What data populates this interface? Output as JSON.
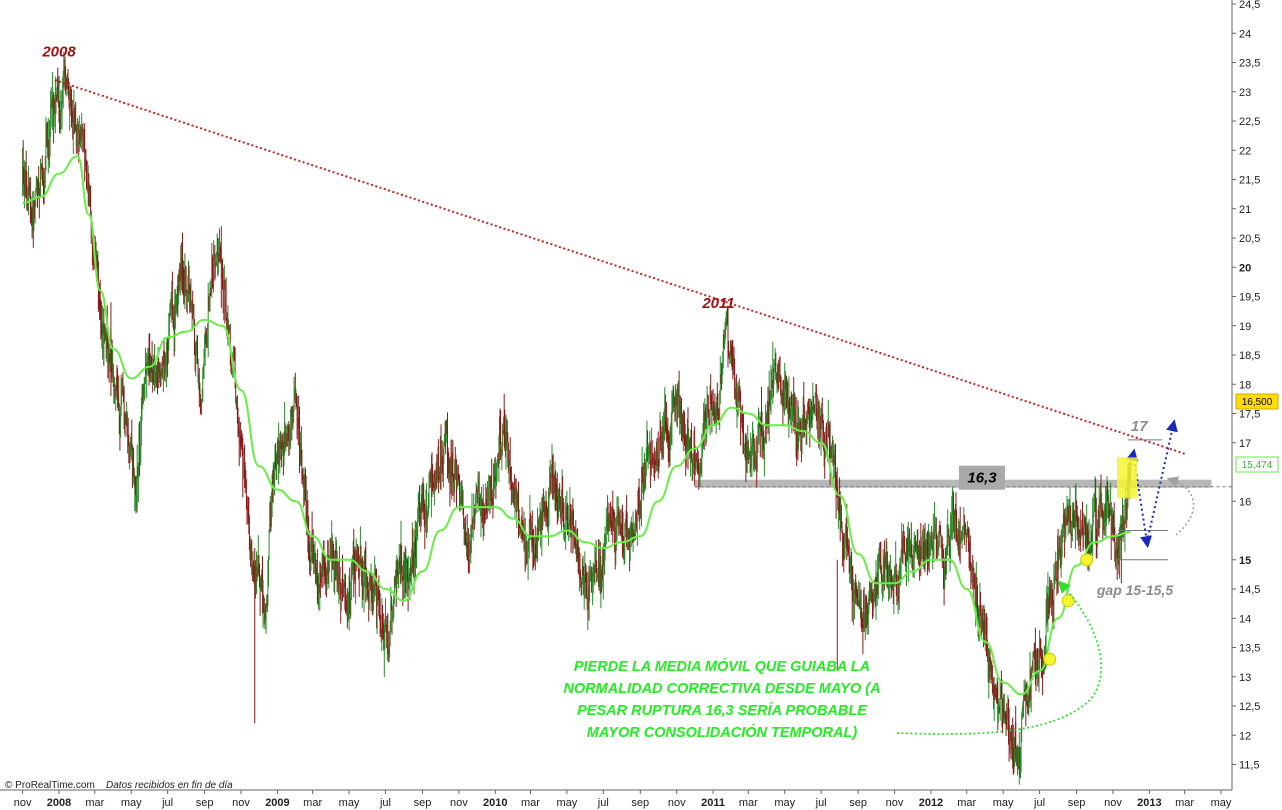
{
  "chart_data": {
    "type": "line",
    "subtype": "price-bars-with-moving-average",
    "footer": {
      "source": "© ProRealTime.com",
      "note": "Datos recibidos en fin de día"
    },
    "x_axis": {
      "labels": [
        "nov",
        "2008",
        "mar",
        "may",
        "jul",
        "sep",
        "nov",
        "2009",
        "mar",
        "may",
        "jul",
        "sep",
        "nov",
        "2010",
        "mar",
        "may",
        "jul",
        "sep",
        "nov",
        "2011",
        "mar",
        "may",
        "jul",
        "sep",
        "nov",
        "2012",
        "mar",
        "may",
        "jul",
        "sep",
        "nov",
        "2013",
        "mar",
        "may"
      ],
      "bold_labels": [
        "2008",
        "2009",
        "2010",
        "2011",
        "2012",
        "2013"
      ],
      "range": [
        "2007-11",
        "2013-05"
      ]
    },
    "y_axis": {
      "labels": [
        "24,5",
        "24",
        "23,5",
        "23",
        "22,5",
        "22",
        "21,5",
        "21",
        "20,5",
        "20",
        "19,5",
        "19",
        "18,5",
        "18",
        "17,5",
        "17",
        "16",
        "15",
        "14,5",
        "14",
        "13,5",
        "13",
        "12,5",
        "12",
        "11,5"
      ],
      "bold_labels": [
        "20",
        "15"
      ],
      "ylim": [
        11.3,
        24.6
      ],
      "position": "right"
    },
    "price_tags": [
      {
        "label": "16,500",
        "value": 16.5,
        "style": "last-price"
      },
      {
        "label": "15,474",
        "value": 15.474,
        "style": "moving-average"
      }
    ],
    "price_path": [
      [
        "2007-11-01",
        21.6
      ],
      [
        "2007-11-20",
        21.0
      ],
      [
        "2007-12-10",
        22.2
      ],
      [
        "2008-01-01",
        22.9
      ],
      [
        "2008-01-10",
        23.1
      ],
      [
        "2008-02-05",
        22.1
      ],
      [
        "2008-02-20",
        21.2
      ],
      [
        "2008-03-10",
        19.3
      ],
      [
        "2008-03-30",
        18.2
      ],
      [
        "2008-04-20",
        17.4
      ],
      [
        "2008-05-10",
        16.5
      ],
      [
        "2008-05-30",
        18.4
      ],
      [
        "2008-06-20",
        18.1
      ],
      [
        "2008-07-10",
        19.2
      ],
      [
        "2008-07-25",
        20.2
      ],
      [
        "2008-08-10",
        19.2
      ],
      [
        "2008-08-25",
        17.9
      ],
      [
        "2008-09-15",
        20.2
      ],
      [
        "2008-10-01",
        19.8
      ],
      [
        "2008-10-15",
        18.4
      ],
      [
        "2008-11-01",
        17.1
      ],
      [
        "2008-11-20",
        15.1
      ],
      [
        "2008-12-10",
        13.9
      ],
      [
        "2008-12-25",
        16.4
      ],
      [
        "2009-01-15",
        17.0
      ],
      [
        "2009-02-01",
        17.8
      ],
      [
        "2009-02-20",
        15.6
      ],
      [
        "2009-03-10",
        14.5
      ],
      [
        "2009-03-30",
        15.1
      ],
      [
        "2009-04-20",
        14.2
      ],
      [
        "2009-05-10",
        15.1
      ],
      [
        "2009-05-30",
        14.6
      ],
      [
        "2009-06-20",
        14.1
      ],
      [
        "2009-07-05",
        13.6
      ],
      [
        "2009-07-20",
        14.7
      ],
      [
        "2009-08-10",
        15.1
      ],
      [
        "2009-08-30",
        15.7
      ],
      [
        "2009-09-20",
        16.4
      ],
      [
        "2009-10-10",
        17.1
      ],
      [
        "2009-10-30",
        16.2
      ],
      [
        "2009-11-20",
        15.2
      ],
      [
        "2009-12-10",
        16.1
      ],
      [
        "2009-12-30",
        16.6
      ],
      [
        "2010-01-15",
        17.2
      ],
      [
        "2010-02-01",
        16.1
      ],
      [
        "2010-02-20",
        15.1
      ],
      [
        "2010-03-15",
        15.6
      ],
      [
        "2010-04-05",
        16.3
      ],
      [
        "2010-04-25",
        16.0
      ],
      [
        "2010-05-15",
        15.2
      ],
      [
        "2010-06-05",
        14.6
      ],
      [
        "2010-06-25",
        15.1
      ],
      [
        "2010-07-15",
        15.6
      ],
      [
        "2010-08-05",
        15.2
      ],
      [
        "2010-08-25",
        15.6
      ],
      [
        "2010-09-15",
        16.6
      ],
      [
        "2010-10-05",
        17.3
      ],
      [
        "2010-10-25",
        17.6
      ],
      [
        "2010-11-15",
        17.1
      ],
      [
        "2010-12-01",
        16.6
      ],
      [
        "2010-12-20",
        17.6
      ],
      [
        "2011-01-10",
        17.9
      ],
      [
        "2011-01-25",
        18.7
      ],
      [
        "2011-02-10",
        17.6
      ],
      [
        "2011-02-25",
        17.2
      ],
      [
        "2011-03-15",
        16.6
      ],
      [
        "2011-03-30",
        17.4
      ],
      [
        "2011-04-15",
        18.1
      ],
      [
        "2011-04-30",
        17.8
      ],
      [
        "2011-05-20",
        17.2
      ],
      [
        "2011-06-10",
        17.7
      ],
      [
        "2011-06-30",
        17.4
      ],
      [
        "2011-07-20",
        16.6
      ],
      [
        "2011-08-05",
        15.6
      ],
      [
        "2011-08-20",
        14.6
      ],
      [
        "2011-09-05",
        13.9
      ],
      [
        "2011-09-25",
        14.2
      ],
      [
        "2011-10-15",
        15.1
      ],
      [
        "2011-11-05",
        14.6
      ],
      [
        "2011-11-25",
        15.6
      ],
      [
        "2011-12-15",
        15.1
      ],
      [
        "2012-01-05",
        15.5
      ],
      [
        "2012-01-25",
        15.1
      ],
      [
        "2012-02-10",
        15.7
      ],
      [
        "2012-02-25",
        15.4
      ],
      [
        "2012-03-10",
        14.6
      ],
      [
        "2012-03-25",
        13.9
      ],
      [
        "2012-04-10",
        13.2
      ],
      [
        "2012-04-25",
        12.6
      ],
      [
        "2012-05-10",
        12.1
      ],
      [
        "2012-05-25",
        11.6
      ],
      [
        "2012-06-10",
        12.6
      ],
      [
        "2012-06-25",
        13.3
      ],
      [
        "2012-07-10",
        13.8
      ],
      [
        "2012-07-25",
        14.6
      ],
      [
        "2012-08-10",
        15.4
      ],
      [
        "2012-08-25",
        15.6
      ],
      [
        "2012-09-10",
        15.7
      ],
      [
        "2012-09-25",
        15.4
      ],
      [
        "2012-10-10",
        15.6
      ],
      [
        "2012-10-25",
        15.9
      ],
      [
        "2012-11-05",
        15.0
      ],
      [
        "2012-11-15",
        15.5
      ],
      [
        "2012-11-30",
        16.5
      ]
    ],
    "moving_average": [
      [
        "2007-11-01",
        21.1
      ],
      [
        "2007-12-01",
        21.2
      ],
      [
        "2008-01-01",
        21.6
      ],
      [
        "2008-02-01",
        21.9
      ],
      [
        "2008-02-20",
        20.9
      ],
      [
        "2008-03-10",
        19.6
      ],
      [
        "2008-04-01",
        18.6
      ],
      [
        "2008-05-01",
        18.1
      ],
      [
        "2008-06-01",
        18.3
      ],
      [
        "2008-07-01",
        18.8
      ],
      [
        "2008-08-01",
        18.9
      ],
      [
        "2008-09-01",
        19.1
      ],
      [
        "2008-10-01",
        19.0
      ],
      [
        "2008-11-01",
        17.9
      ],
      [
        "2008-12-01",
        16.6
      ],
      [
        "2009-01-01",
        16.2
      ],
      [
        "2009-02-01",
        16.0
      ],
      [
        "2009-03-01",
        15.4
      ],
      [
        "2009-04-01",
        15.0
      ],
      [
        "2009-05-01",
        15.0
      ],
      [
        "2009-06-01",
        14.8
      ],
      [
        "2009-07-01",
        14.5
      ],
      [
        "2009-08-01",
        14.3
      ],
      [
        "2009-09-01",
        14.8
      ],
      [
        "2009-10-01",
        15.5
      ],
      [
        "2009-11-01",
        15.9
      ],
      [
        "2009-12-01",
        15.9
      ],
      [
        "2010-01-01",
        15.9
      ],
      [
        "2010-02-01",
        15.7
      ],
      [
        "2010-03-01",
        15.4
      ],
      [
        "2010-04-01",
        15.4
      ],
      [
        "2010-05-01",
        15.5
      ],
      [
        "2010-06-01",
        15.3
      ],
      [
        "2010-07-01",
        15.2
      ],
      [
        "2010-08-01",
        15.3
      ],
      [
        "2010-09-01",
        15.4
      ],
      [
        "2010-10-01",
        16.0
      ],
      [
        "2010-11-01",
        16.6
      ],
      [
        "2010-12-01",
        16.9
      ],
      [
        "2011-01-01",
        17.3
      ],
      [
        "2011-02-01",
        17.6
      ],
      [
        "2011-03-01",
        17.5
      ],
      [
        "2011-04-01",
        17.3
      ],
      [
        "2011-05-01",
        17.3
      ],
      [
        "2011-06-01",
        17.2
      ],
      [
        "2011-07-01",
        17.0
      ],
      [
        "2011-08-01",
        16.1
      ],
      [
        "2011-09-01",
        15.1
      ],
      [
        "2011-10-01",
        14.6
      ],
      [
        "2011-11-01",
        14.6
      ],
      [
        "2011-12-01",
        14.8
      ],
      [
        "2012-01-01",
        15.0
      ],
      [
        "2012-02-01",
        15.0
      ],
      [
        "2012-03-01",
        14.5
      ],
      [
        "2012-04-01",
        13.6
      ],
      [
        "2012-05-01",
        12.9
      ],
      [
        "2012-06-01",
        12.7
      ],
      [
        "2012-07-01",
        13.1
      ],
      [
        "2012-08-01",
        14.0
      ],
      [
        "2012-09-01",
        14.9
      ],
      [
        "2012-10-01",
        15.3
      ],
      [
        "2012-11-01",
        15.4
      ],
      [
        "2012-11-30",
        15.474
      ]
    ],
    "trendline": {
      "from": [
        "2007-12-25",
        23.2
      ],
      "to": [
        "2013-03-05",
        16.8
      ],
      "color": "#cc2222",
      "style": "dotted"
    },
    "resistance": {
      "label": "16,3",
      "value": 16.3,
      "from": "2010-12-01",
      "to": "2013-04-15"
    },
    "reference_line": {
      "value": 16.3,
      "style": "dashed",
      "color": "#888888"
    },
    "annotations": [
      {
        "text": "2008",
        "x": "2008-01-01",
        "y": 23.6,
        "color": "#a01010"
      },
      {
        "text": "2011",
        "x": "2011-01-10",
        "y": 19.3,
        "color": "#a01010"
      },
      {
        "text": "17",
        "x": "2012-12-15",
        "y": 17.2,
        "color": "#8c8c8c"
      },
      {
        "text": "gap 15-15,5",
        "x": "2012-10-05",
        "y": 14.4,
        "color": "#8c8c8c"
      }
    ],
    "gap_lines": [
      15.5,
      15.0
    ],
    "note_lines": [
      "PIERDE LA MEDIA MÓVIL QUE GUIABA LA",
      "NORMALIDAD CORRECTIVA DESDE MAYO (A",
      "PESAR RUPTURA 16,3 SERÍA PROBABLE",
      "MAYOR CONSOLIDACIÓN TEMPORAL)"
    ],
    "highlight_points": [
      [
        "2012-07-18",
        13.3
      ],
      [
        "2012-08-18",
        14.3
      ],
      [
        "2012-09-18",
        15.0
      ]
    ],
    "forecast_path": [
      [
        "2012-12-05",
        16.8
      ],
      [
        "2012-12-28",
        15.3
      ],
      [
        "2013-02-10",
        17.3
      ]
    ],
    "colors": {
      "price_up": "#2a8a2a",
      "price_down": "#8a1a1a",
      "moving_average": "#66ee44",
      "trendline": "#cc2222",
      "forecast": "#1a2ab8",
      "highlight": "#f4f430",
      "resistance_band": "#b8b8b8",
      "last_price_tag": "#ffdd00"
    }
  }
}
